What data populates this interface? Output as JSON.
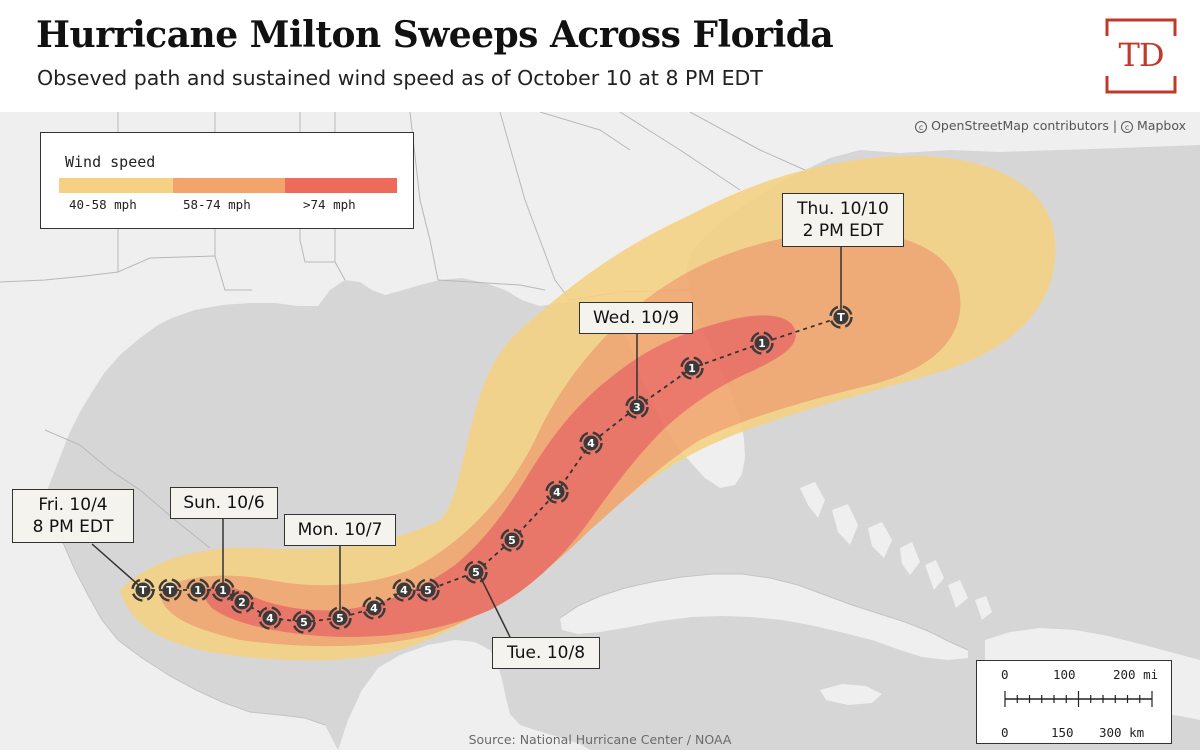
{
  "header": {
    "title": "Hurricane Milton Sweeps Across Florida",
    "subtitle": "Obseved path and sustained wind speed as of October 10 at 8 PM EDT",
    "logo_text": "TD"
  },
  "attribution": {
    "osm": "OpenStreetMap contributors",
    "separator": "|",
    "mapbox": "Mapbox"
  },
  "legend": {
    "title": "Wind speed",
    "items": [
      {
        "label": "40-58 mph",
        "color": "#f5d283"
      },
      {
        "label": "58-74 mph",
        "color": "#f2a46b"
      },
      {
        "label": ">74 mph",
        "color": "#ec6b5a"
      }
    ]
  },
  "callouts": [
    {
      "id": "fri",
      "line1": "Fri. 10/4",
      "line2": "8 PM EDT"
    },
    {
      "id": "sun",
      "line1": "Sun. 10/6",
      "line2": ""
    },
    {
      "id": "mon",
      "line1": "Mon. 10/7",
      "line2": ""
    },
    {
      "id": "tue",
      "line1": "Tue. 10/8",
      "line2": ""
    },
    {
      "id": "wed",
      "line1": "Wed. 10/9",
      "line2": ""
    },
    {
      "id": "thu",
      "line1": "Thu. 10/10",
      "line2": "2 PM EDT"
    }
  ],
  "track_points": [
    {
      "label": "T"
    },
    {
      "label": "T"
    },
    {
      "label": "1"
    },
    {
      "label": "1"
    },
    {
      "label": "2"
    },
    {
      "label": "4"
    },
    {
      "label": "5"
    },
    {
      "label": "5"
    },
    {
      "label": "4"
    },
    {
      "label": "4"
    },
    {
      "label": "5"
    },
    {
      "label": "5"
    },
    {
      "label": "5"
    },
    {
      "label": "4"
    },
    {
      "label": "4"
    },
    {
      "label": "3"
    },
    {
      "label": "1"
    },
    {
      "label": "1"
    },
    {
      "label": "T"
    }
  ],
  "scale": {
    "miles": [
      "0",
      "100",
      "200 mi"
    ],
    "km": [
      "0",
      "150",
      "300 km"
    ]
  },
  "source": "Source: National Hurricane Center / NOAA",
  "colors": {
    "sea": "#d6d6d6",
    "land": "#efefef",
    "zone_tropical": "#f5d283",
    "zone_storm": "#f2a46b",
    "zone_hurricane": "#ec6b5a",
    "marker": "#3a3a3a"
  }
}
